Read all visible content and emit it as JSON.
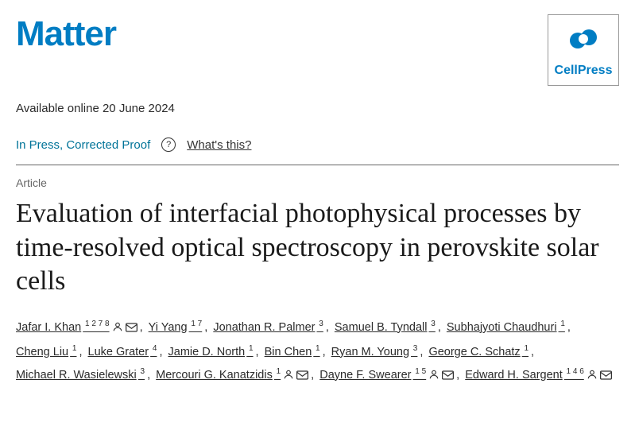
{
  "journal": {
    "name": "Matter",
    "publisher": "CellPress",
    "logo_color": "#007dc3"
  },
  "available_online": "Available online 20 June 2024",
  "press": {
    "status": "In Press, Corrected Proof",
    "help_label": "What's this?"
  },
  "article": {
    "type": "Article",
    "title": "Evaluation of interfacial photophysical processes by time-resolved optical spectroscopy in perovskite solar cells"
  },
  "authors": [
    {
      "name": "Jafar I. Khan",
      "affil": "1 2 7 8",
      "person": true,
      "mail": true
    },
    {
      "name": "Yi Yang",
      "affil": "1 7",
      "person": false,
      "mail": false
    },
    {
      "name": "Jonathan R. Palmer",
      "affil": "3",
      "person": false,
      "mail": false
    },
    {
      "name": "Samuel B. Tyndall",
      "affil": "3",
      "person": false,
      "mail": false
    },
    {
      "name": "Subhajyoti Chaudhuri",
      "affil": "1",
      "person": false,
      "mail": false
    },
    {
      "name": "Cheng Liu",
      "affil": "1",
      "person": false,
      "mail": false
    },
    {
      "name": "Luke Grater",
      "affil": "4",
      "person": false,
      "mail": false
    },
    {
      "name": "Jamie D. North",
      "affil": "1",
      "person": false,
      "mail": false
    },
    {
      "name": "Bin Chen",
      "affil": "1",
      "person": false,
      "mail": false
    },
    {
      "name": "Ryan M. Young",
      "affil": "3",
      "person": false,
      "mail": false
    },
    {
      "name": "George C. Schatz",
      "affil": "1",
      "person": false,
      "mail": false
    },
    {
      "name": "Michael R. Wasielewski",
      "affil": "3",
      "person": false,
      "mail": false
    },
    {
      "name": "Mercouri G. Kanatzidis",
      "affil": "1",
      "person": true,
      "mail": true
    },
    {
      "name": "Dayne F. Swearer",
      "affil": "1 5",
      "person": true,
      "mail": true
    },
    {
      "name": "Edward H. Sargent",
      "affil": "1 4 6",
      "person": true,
      "mail": true
    }
  ],
  "colors": {
    "brand": "#007dc3",
    "link": "#007398",
    "text": "#333333"
  }
}
